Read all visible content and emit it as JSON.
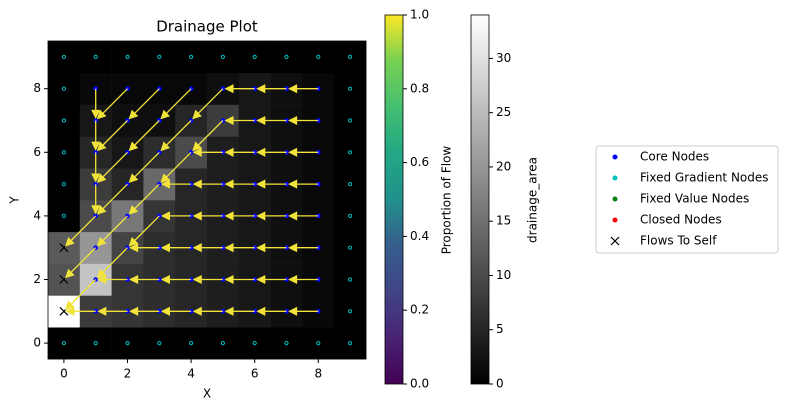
{
  "chart_data": {
    "type": "heatmap",
    "title": "Drainage Plot",
    "x_label": "X",
    "y_label": "Y",
    "xlim": [
      -0.5,
      9.5
    ],
    "ylim": [
      -0.5,
      9.5
    ],
    "xticks": [
      0,
      2,
      4,
      6,
      8
    ],
    "yticks": [
      0,
      2,
      4,
      6,
      8
    ],
    "drainage_area": [
      [
        0,
        0,
        0,
        0,
        0,
        0,
        0,
        0,
        0,
        0
      ],
      [
        34,
        8,
        7,
        6,
        5,
        4,
        3,
        2,
        1,
        0
      ],
      [
        11,
        26,
        7,
        6,
        5,
        4,
        3,
        2,
        1,
        0
      ],
      [
        12,
        20,
        9,
        6,
        5,
        4,
        3,
        2,
        1,
        0
      ],
      [
        0,
        10,
        16,
        7,
        5,
        4,
        3,
        2,
        1,
        0
      ],
      [
        0,
        8,
        5,
        14,
        5,
        4,
        3,
        2,
        1,
        0
      ],
      [
        0,
        5,
        3,
        6,
        10,
        4,
        3,
        2,
        1,
        0
      ],
      [
        0,
        3,
        2,
        2,
        5,
        8,
        3,
        2,
        1,
        0
      ],
      [
        0,
        1,
        1,
        1,
        1,
        2,
        3,
        2,
        1,
        0
      ],
      [
        0,
        0,
        0,
        0,
        0,
        0,
        0,
        0,
        0,
        0
      ]
    ],
    "flow_directions": [
      [
        null,
        null,
        null,
        null,
        null,
        null,
        null,
        null,
        null,
        null
      ],
      [
        null,
        "W",
        "W",
        "W",
        "W",
        "W",
        "W",
        "W",
        "W",
        null
      ],
      [
        null,
        "SW",
        "W",
        "W",
        "W",
        "W",
        "W",
        "W",
        "W",
        null
      ],
      [
        null,
        "SW",
        "SW",
        "W",
        "W",
        "W",
        "W",
        "W",
        "W",
        null
      ],
      [
        null,
        "SW",
        "SW",
        "SW",
        "W",
        "W",
        "W",
        "W",
        "W",
        null
      ],
      [
        null,
        "S",
        "SW",
        "SW",
        "W",
        "W",
        "W",
        "W",
        "W",
        null
      ],
      [
        null,
        "S",
        "SW",
        "SW",
        "SW",
        "W",
        "W",
        "W",
        "W",
        null
      ],
      [
        null,
        "S",
        "SW",
        "SW",
        "SW",
        "SW",
        "W",
        "W",
        "W",
        null
      ],
      [
        null,
        "S",
        "SW",
        "SW",
        "SW",
        "SW",
        "W",
        "W",
        "W",
        null
      ],
      [
        null,
        null,
        null,
        null,
        null,
        null,
        null,
        null,
        null,
        null
      ]
    ],
    "arrow_color": "#f2e33a",
    "flows_to_self": [
      [
        0,
        1
      ],
      [
        0,
        2
      ],
      [
        0,
        3
      ]
    ],
    "colorbars": [
      {
        "label": "Proportion of Flow",
        "colormap": "viridis",
        "lim": [
          0,
          1
        ],
        "ticks": [
          {
            "value": 0,
            "label": "0.0"
          },
          {
            "value": 0.2,
            "label": "0.2"
          },
          {
            "value": 0.4,
            "label": "0.4"
          },
          {
            "value": 0.6,
            "label": "0.6"
          },
          {
            "value": 0.8,
            "label": "0.8"
          },
          {
            "value": 1,
            "label": "1.0"
          }
        ]
      },
      {
        "label": "drainage_area",
        "colormap": "gray",
        "lim": [
          0,
          34
        ],
        "ticks": [
          0,
          5,
          10,
          15,
          20,
          25,
          30
        ]
      }
    ],
    "legend": [
      {
        "name": "Core Nodes",
        "color": "#0000ff",
        "marker": "dot"
      },
      {
        "name": "Fixed Gradient Nodes",
        "color": "#00bfbf",
        "marker": "dot"
      },
      {
        "name": "Fixed Value Nodes",
        "color": "#008000",
        "marker": "dot"
      },
      {
        "name": "Closed Nodes",
        "color": "#ff0000",
        "marker": "dot"
      },
      {
        "name": "Flows To Self",
        "color": "#000000",
        "marker": "x"
      }
    ]
  }
}
